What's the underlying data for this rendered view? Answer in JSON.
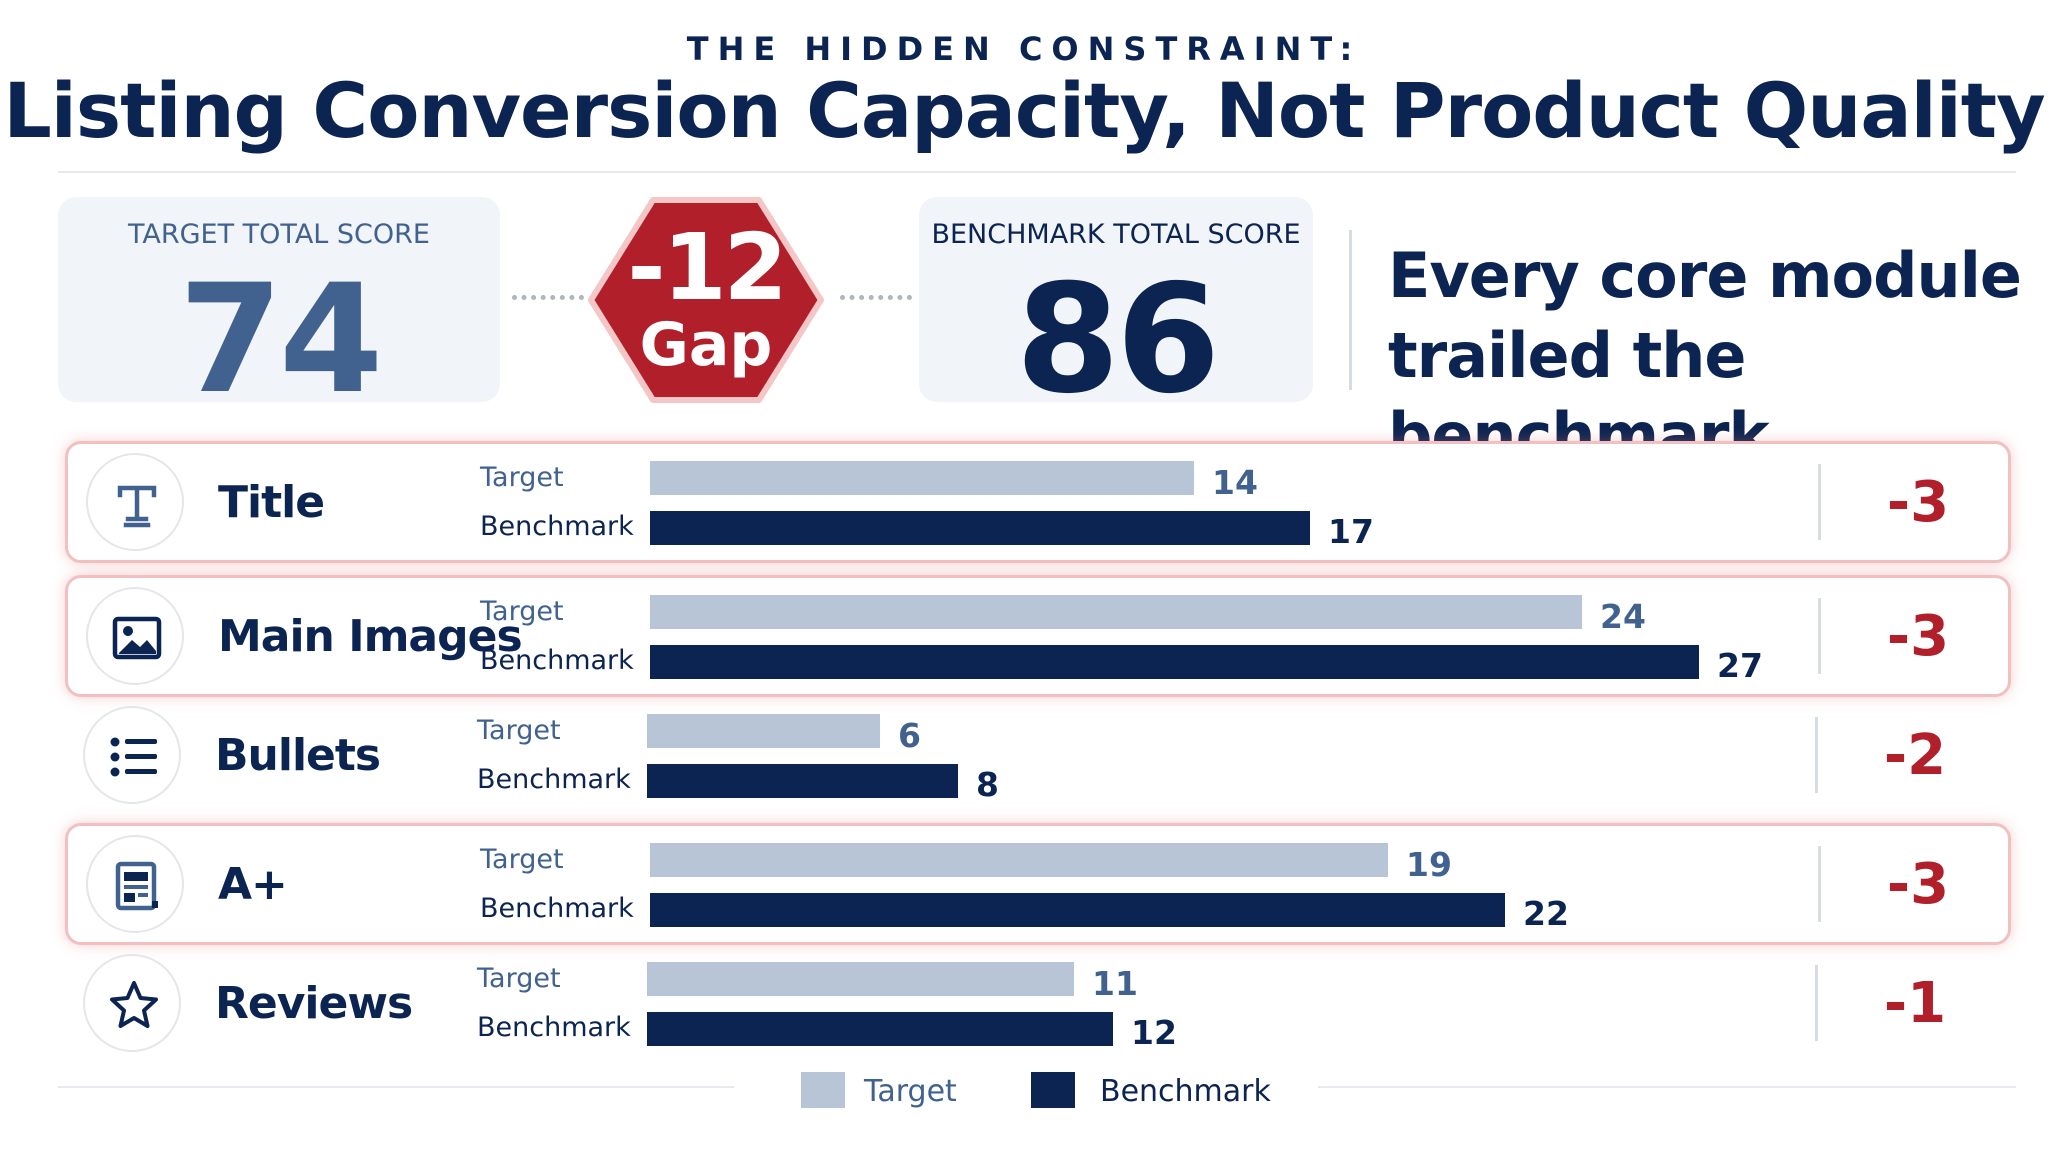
{
  "header": {
    "eyebrow": "THE HIDDEN CONSTRAINT:",
    "title": "Listing Conversion Capacity, Not Product Quality"
  },
  "target_score": {
    "label": "TARGET TOTAL SCORE",
    "value": "74"
  },
  "gap": {
    "value": "-12",
    "label": "Gap"
  },
  "benchmark_score": {
    "label": "BENCHMARK TOTAL SCORE",
    "value": "86"
  },
  "callout": {
    "line1": "Every core module",
    "line2": "trailed the benchmark."
  },
  "colors": {
    "target": "#b8c5d6",
    "benchmark": "#0c2451",
    "gap": "#b1202a",
    "highlight": "#f2c0c0"
  },
  "chart_data": {
    "type": "bar",
    "orientation": "horizontal",
    "categories": [
      "Title",
      "Main Images",
      "Bullets",
      "A+",
      "Reviews"
    ],
    "series": [
      {
        "name": "Target",
        "values": [
          14,
          24,
          6,
          19,
          11
        ]
      },
      {
        "name": "Benchmark",
        "values": [
          17,
          27,
          8,
          22,
          12
        ]
      }
    ],
    "differences": [
      "-3",
      "-3",
      "-2",
      "-3",
      "-1"
    ],
    "highlighted": [
      true,
      true,
      false,
      true,
      false
    ],
    "icons": [
      "title-icon",
      "image-icon",
      "list-icon",
      "document-icon",
      "star-icon"
    ],
    "row_labels": {
      "target": "Target",
      "benchmark": "Benchmark"
    },
    "xlim": [
      0,
      30
    ],
    "grid": false,
    "legend_position": "bottom-center"
  },
  "legend": {
    "target": "Target",
    "benchmark": "Benchmark"
  }
}
